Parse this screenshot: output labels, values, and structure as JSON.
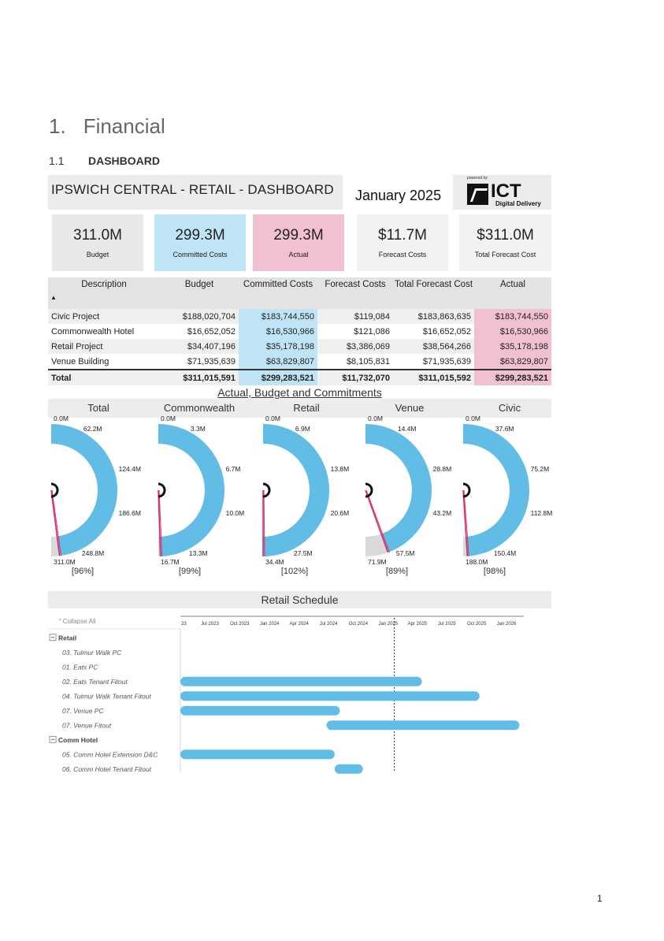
{
  "heading": {
    "number": "1.",
    "title": "Financial"
  },
  "subheading": {
    "number": "1.1",
    "title": "DASHBOARD"
  },
  "dashboard": {
    "title": "IPSWICH CENTRAL - RETAIL - DASHBOARD",
    "month": "January 2025",
    "logo": {
      "powered_by": "powered by",
      "brand": "ICT",
      "tagline": "Digital Delivery"
    },
    "cards": [
      {
        "value": "311.0M",
        "label": "Budget",
        "color": "#e8e8e8"
      },
      {
        "value": "299.3M",
        "label": "Committed Costs",
        "color": "#bfe4f5"
      },
      {
        "value": "299.3M",
        "label": "Actual",
        "color": "#f2c0d3"
      },
      {
        "value": "$11.7M",
        "label": "Forecast Costs",
        "color": "#f2f2f2"
      },
      {
        "value": "$311.0M",
        "label": "Total Forecast Cost",
        "color": "#f2f2f2"
      }
    ],
    "table": {
      "headers": [
        "Description",
        "Budget",
        "Committed Costs",
        "Forecast Costs",
        "Total Forecast Cost",
        "Actual"
      ],
      "sort_indicator": "▲",
      "rows": [
        [
          "Civic Project",
          "$188,020,704",
          "$183,744,550",
          "$119,084",
          "$183,863,635",
          "$183,744,550"
        ],
        [
          "Commonwealth Hotel",
          "$16,652,052",
          "$16,530,966",
          "$121,086",
          "$16,652,052",
          "$16,530,966"
        ],
        [
          "Retail Project",
          "$34,407,196",
          "$35,178,198",
          "$3,386,069",
          "$38,564,266",
          "$35,178,198"
        ],
        [
          "Venue Building",
          "$71,935,639",
          "$63,829,807",
          "$8,105,831",
          "$71,935,639",
          "$63,829,807"
        ]
      ],
      "total": [
        "Total",
        "$311,015,591",
        "$299,283,521",
        "$11,732,070",
        "$311,015,592",
        "$299,283,521"
      ]
    },
    "gauges_title": "Actual, Budget and Commitments",
    "gauges": [
      {
        "title": "Total",
        "ticks": [
          "0.0M",
          "62.2M",
          "124.4M",
          "186.6M",
          "248.8M",
          "311.0M"
        ],
        "pct": "[96%]",
        "fraction": 0.96
      },
      {
        "title": "Commonwealth",
        "ticks": [
          "0.0M",
          "3.3M",
          "6.7M",
          "10.0M",
          "13.3M",
          "16.7M"
        ],
        "pct": "[99%]",
        "fraction": 0.99
      },
      {
        "title": "Retail",
        "ticks": [
          "0.0M",
          "6.9M",
          "13.8M",
          "20.6M",
          "27.5M",
          "34.4M"
        ],
        "pct": "[102%]",
        "fraction": 1.0
      },
      {
        "title": "Venue",
        "ticks": [
          "0.0M",
          "14.4M",
          "28.8M",
          "43.2M",
          "57.5M",
          "71.9M"
        ],
        "pct": "[89%]",
        "fraction": 0.89
      },
      {
        "title": "Civic",
        "ticks": [
          "0.0M",
          "37.6M",
          "75.2M",
          "112.8M",
          "150.4M",
          "188.0M"
        ],
        "pct": "[98%]",
        "fraction": 0.98
      }
    ],
    "gauge_colors": {
      "arc": "#62bde6",
      "remaining": "#d9d9d9",
      "needle": "#d6336c"
    },
    "schedule": {
      "title": "Retail Schedule",
      "collapse_label": "Collapse All",
      "timeline_ticks": [
        "23",
        "Jul 2023",
        "Oct 2023",
        "Jan 2024",
        "Apr 2024",
        "Jul 2024",
        "Oct 2024",
        "Jan 2025",
        "Apr 2025",
        "Jul 2025",
        "Oct 2025",
        "Jan 2026"
      ],
      "today": "2025-01-20",
      "rows": [
        {
          "label": "Retail",
          "group": true
        },
        {
          "label": "03. Tulmur Walk PC"
        },
        {
          "label": "01. Eats PC"
        },
        {
          "label": "02. Eats Tenant Fitout",
          "start": "2023-04-01",
          "end": "2025-04-15"
        },
        {
          "label": "04. Tulmur Walk Tenant Fitout",
          "start": "2023-04-01",
          "end": "2025-10-10"
        },
        {
          "label": "07. Venue PC",
          "start": "2023-04-01",
          "end": "2024-08-05"
        },
        {
          "label": "07. Venue Fitout",
          "start": "2024-06-25",
          "end": "2026-02-10"
        },
        {
          "label": "Comm Hotel",
          "group": true
        },
        {
          "label": "05. Comm Hotel Extension D&C",
          "start": "2023-04-01",
          "end": "2024-07-20"
        },
        {
          "label": "06. Comm Hotel Tenant Fitout",
          "start": "2024-07-20",
          "end": "2024-10-15"
        }
      ],
      "bar_color": "#62bde6"
    }
  },
  "page_number": "1"
}
